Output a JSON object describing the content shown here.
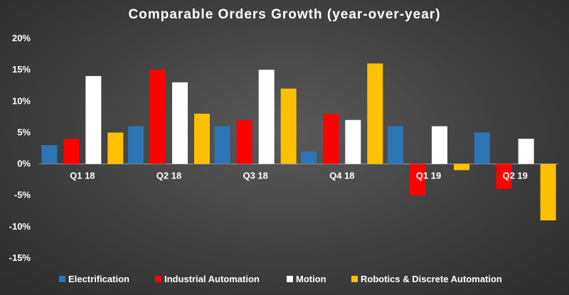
{
  "chart_data": {
    "type": "bar",
    "title": "Comparable  Orders  Growth  (year-over-year)",
    "categories": [
      "Q1 18",
      "Q2 18",
      "Q3 18",
      "Q4 18",
      "Q1 19",
      "Q2 19"
    ],
    "series": [
      {
        "name": "Electrification",
        "color": "#2e75b6",
        "values": [
          3,
          6,
          6,
          2,
          6,
          5
        ]
      },
      {
        "name": "Industrial Automation",
        "color": "#ff0000",
        "values": [
          4,
          15,
          7,
          8,
          -5,
          -4
        ]
      },
      {
        "name": "Motion",
        "color": "#ffffff",
        "values": [
          14,
          13,
          15,
          7,
          6,
          4
        ]
      },
      {
        "name": "Robotics & Discrete Automation",
        "color": "#ffc000",
        "values": [
          5,
          8,
          12,
          16,
          -1,
          -9
        ]
      }
    ],
    "ylim": [
      -15,
      20
    ],
    "yticks": [
      20,
      15,
      10,
      5,
      0,
      -5,
      -10,
      -15
    ],
    "ytick_labels": [
      "20%",
      "15%",
      "10%",
      "5%",
      "0%",
      "-5%",
      "-10%",
      "-15%"
    ],
    "xlabel": "",
    "ylabel": "",
    "grid": false,
    "legend_position": "bottom"
  }
}
